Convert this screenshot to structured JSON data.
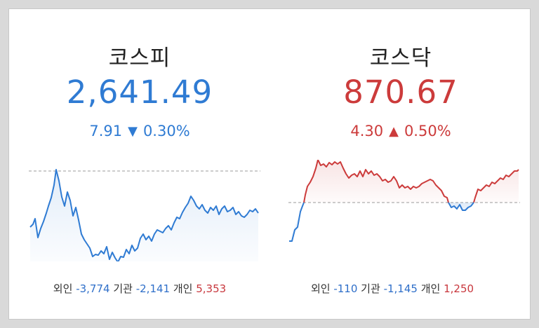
{
  "kospi": {
    "name": "코스피",
    "value": "2,641.49",
    "change": "7.91",
    "direction_icon": "triangle-down-icon",
    "percent": "0.30%",
    "color": "#2f7bd3",
    "investors": [
      {
        "label": "외인",
        "value": "-3,774"
      },
      {
        "label": "기관",
        "value": "-2,141"
      },
      {
        "label": "개인",
        "value": "5,353"
      }
    ]
  },
  "kosdaq": {
    "name": "코스닥",
    "value": "870.67",
    "change": "4.30",
    "direction_icon": "triangle-up-icon",
    "percent": "0.50%",
    "color": "#cc3b3b",
    "investors": [
      {
        "label": "외인",
        "value": "-110"
      },
      {
        "label": "기관",
        "value": "-1,145"
      },
      {
        "label": "개인",
        "value": "1,250"
      }
    ]
  },
  "colors": {
    "up": "#cc3b3b",
    "down": "#2f7bd3",
    "baseline": "#9a9a9a"
  }
}
